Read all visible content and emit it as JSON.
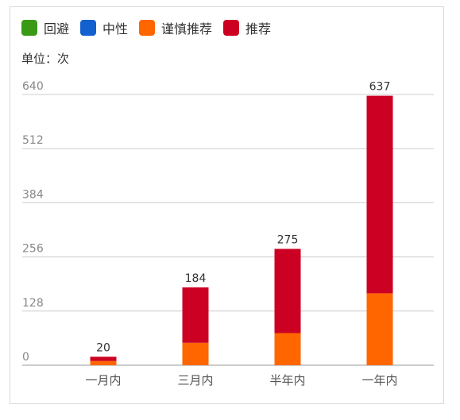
{
  "legend": [
    {
      "label": "回避",
      "color": "#3a9a16"
    },
    {
      "label": "中性",
      "color": "#1261cf"
    },
    {
      "label": "谨慎推荐",
      "color": "#ff6600"
    },
    {
      "label": "推荐",
      "color": "#cc0022"
    }
  ],
  "unit_text": "单位：次",
  "chart_data": {
    "type": "bar",
    "stacked": true,
    "categories": [
      "一月内",
      "三月内",
      "半年内",
      "一年内"
    ],
    "series": [
      {
        "name": "回避",
        "color": "#3a9a16",
        "values": [
          0,
          0,
          0,
          0
        ]
      },
      {
        "name": "中性",
        "color": "#1261cf",
        "values": [
          0,
          0,
          0,
          0
        ]
      },
      {
        "name": "谨慎推荐",
        "color": "#ff6600",
        "values": [
          10,
          53,
          76,
          170
        ]
      },
      {
        "name": "推荐",
        "color": "#cc0022",
        "values": [
          10,
          131,
          199,
          467
        ]
      }
    ],
    "totals": [
      20,
      184,
      275,
      637
    ],
    "ylim": [
      0,
      640
    ],
    "yticks": [
      0,
      128,
      256,
      384,
      512,
      640
    ],
    "grid": true,
    "legend_position": "top-left"
  }
}
